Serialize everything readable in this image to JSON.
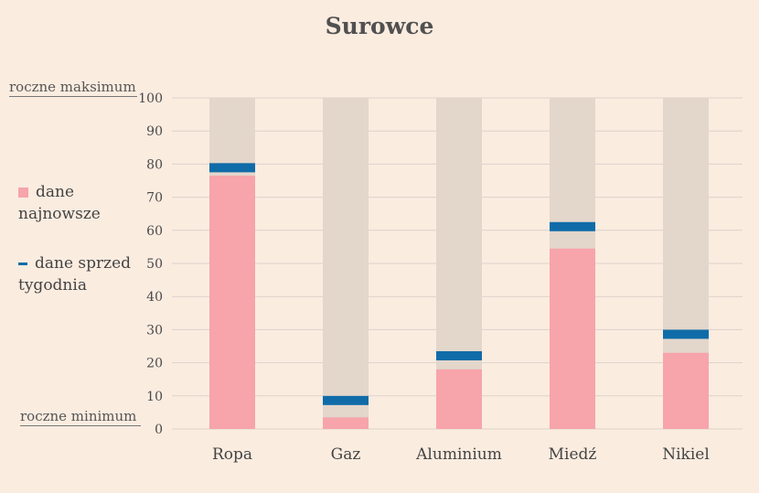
{
  "title": "Surowce",
  "legend": {
    "latest_line1": "dane",
    "latest_line2": "najnowsze",
    "week_line1": "dane sprzed",
    "week_line2": "tygodnia"
  },
  "annotations": {
    "max": "roczne maksimum",
    "min": "roczne minimum"
  },
  "colors": {
    "background": "#fbece0",
    "range": "#e3d6cb",
    "latest": "#f7a4ab",
    "week_ago": "#0f6ca8",
    "grid": "#dcd2c9"
  },
  "chart_data": {
    "type": "bar",
    "title": "Surowce",
    "categories": [
      "Ropa",
      "Gaz",
      "Aluminium",
      "Miedź",
      "Nikiel"
    ],
    "series": [
      {
        "name": "dane najnowsze",
        "values": [
          76.5,
          3.5,
          18,
          54.5,
          23
        ]
      },
      {
        "name": "dane sprzed tygodnia",
        "values": [
          77.8,
          7.5,
          21,
          60,
          27.5
        ]
      }
    ],
    "ylim": [
      0,
      100
    ],
    "yticks": [
      0,
      10,
      20,
      30,
      40,
      50,
      60,
      70,
      80,
      90,
      100
    ],
    "grid": true,
    "legend_position": "left"
  }
}
